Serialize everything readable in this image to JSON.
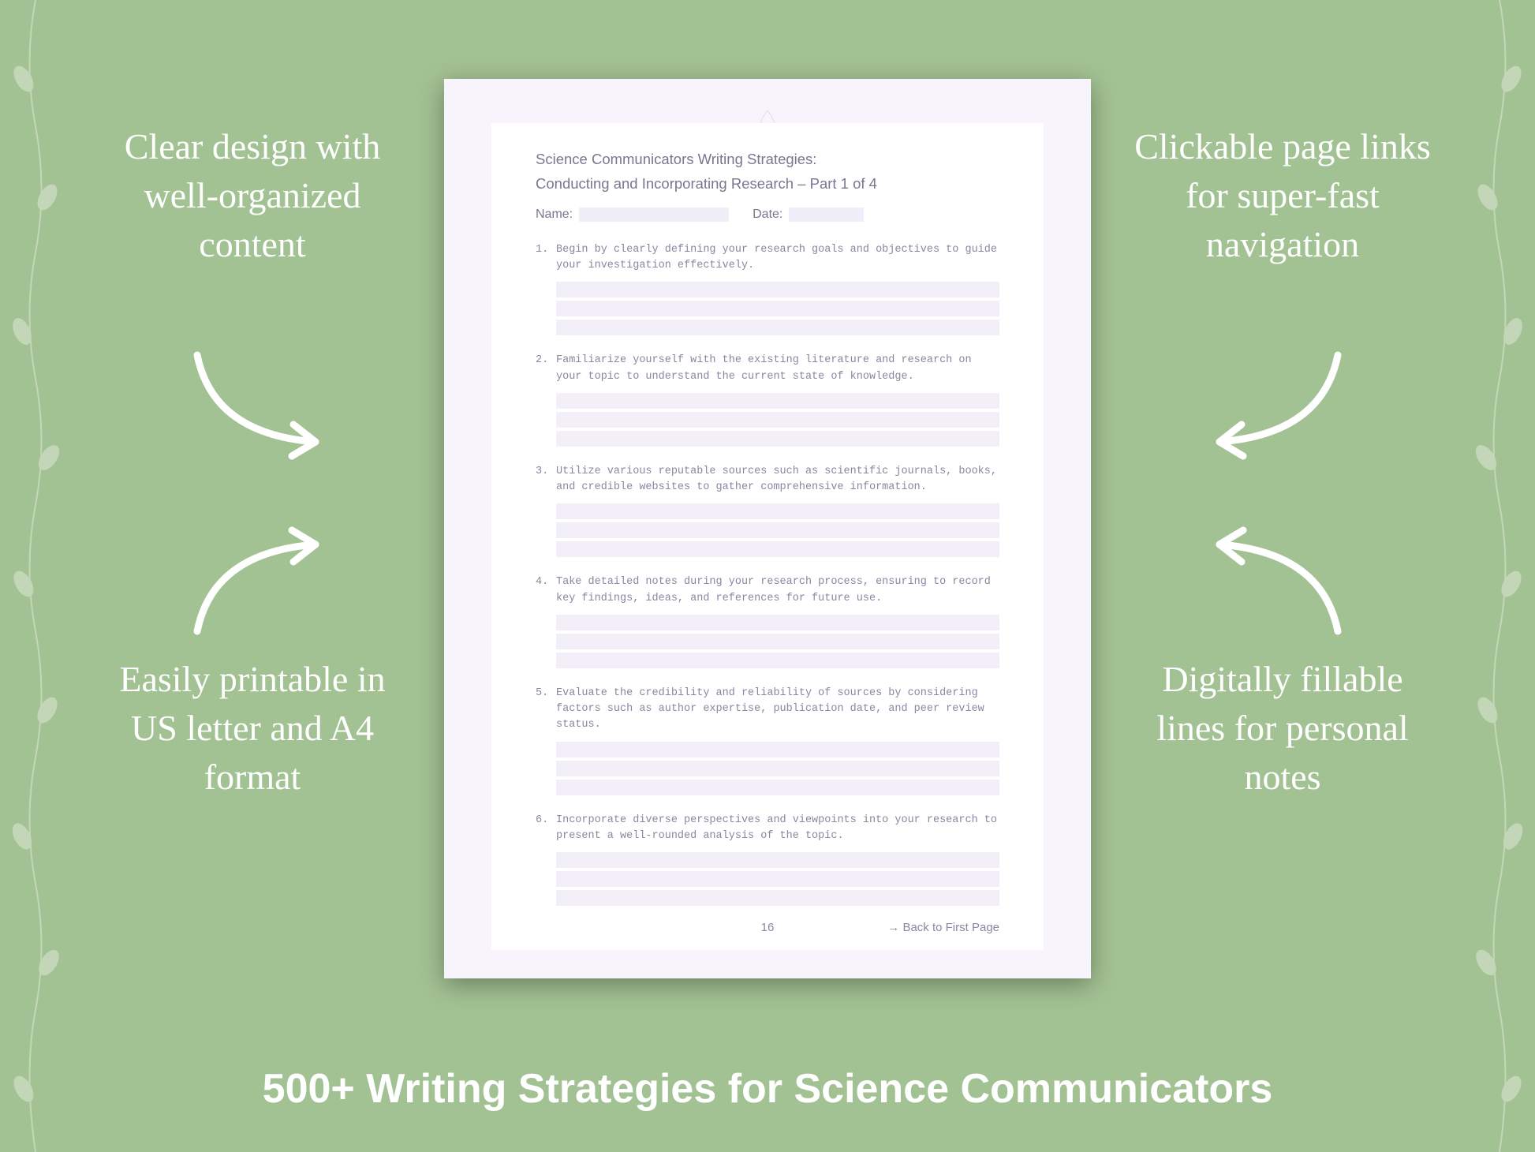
{
  "colors": {
    "background": "#a3c293",
    "callout_text": "#ffffff",
    "page_outer": "#f7f4fb",
    "page_inner": "#ffffff",
    "page_text": "#7b7690",
    "item_text": "#8b86a0",
    "fill_line": "#f3eff9",
    "shadow": "rgba(0,0,0,0.35)"
  },
  "callouts": {
    "top_left": "Clear design with well-organized content",
    "top_right": "Clickable page links for super-fast navigation",
    "bottom_left": "Easily printable in US letter and A4 format",
    "bottom_right": "Digitally fillable lines for personal notes"
  },
  "bottom_title": "500+ Writing Strategies for Science Communicators",
  "page": {
    "title_line1": "Science Communicators Writing Strategies:",
    "title_line2": "Conducting and Incorporating Research – Part 1 of 4",
    "name_label": "Name:",
    "date_label": "Date:",
    "items": [
      "Begin by clearly defining your research goals and objectives to guide your investigation effectively.",
      "Familiarize yourself with the existing literature and research on your topic to understand the current state of knowledge.",
      "Utilize various reputable sources such as scientific journals, books, and credible websites to gather comprehensive information.",
      "Take detailed notes during your research process, ensuring to record key findings, ideas, and references for future use.",
      "Evaluate the credibility and reliability of sources by considering factors such as author expertise, publication date, and peer review status.",
      "Incorporate diverse perspectives and viewpoints into your research to present a well-rounded analysis of the topic."
    ],
    "page_number": "16",
    "back_link": "→ Back to First Page"
  },
  "typography": {
    "callout_fontsize": 46,
    "bottom_title_fontsize": 52,
    "page_title_fontsize": 18.5,
    "item_fontsize": 13.5
  }
}
